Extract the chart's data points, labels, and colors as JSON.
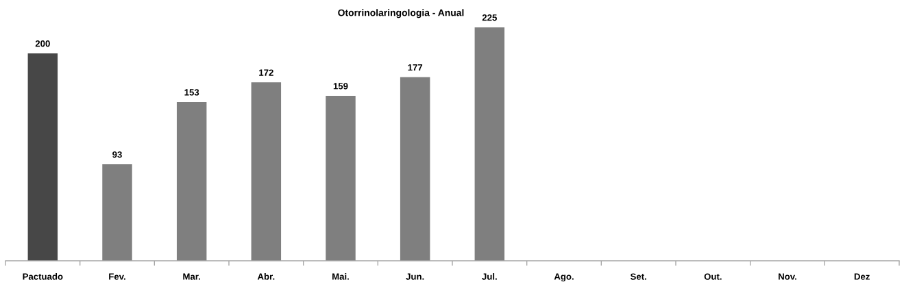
{
  "chart_data": {
    "type": "bar",
    "title": "Otorrinolaringologia - Anual",
    "categories": [
      "Pactuado",
      "Fev.",
      "Mar.",
      "Abr.",
      "Mai.",
      "Jun.",
      "Jul.",
      "Ago.",
      "Set.",
      "Out.",
      "Nov.",
      "Dez"
    ],
    "values": [
      200,
      93,
      153,
      172,
      159,
      177,
      225,
      null,
      null,
      null,
      null,
      null
    ],
    "colors": [
      "#474747",
      "#7f7f7f",
      "#7f7f7f",
      "#7f7f7f",
      "#7f7f7f",
      "#7f7f7f",
      "#7f7f7f",
      "#7f7f7f",
      "#7f7f7f",
      "#7f7f7f",
      "#7f7f7f",
      "#7f7f7f"
    ],
    "data_labels": true,
    "tick_labels": "x"
  }
}
